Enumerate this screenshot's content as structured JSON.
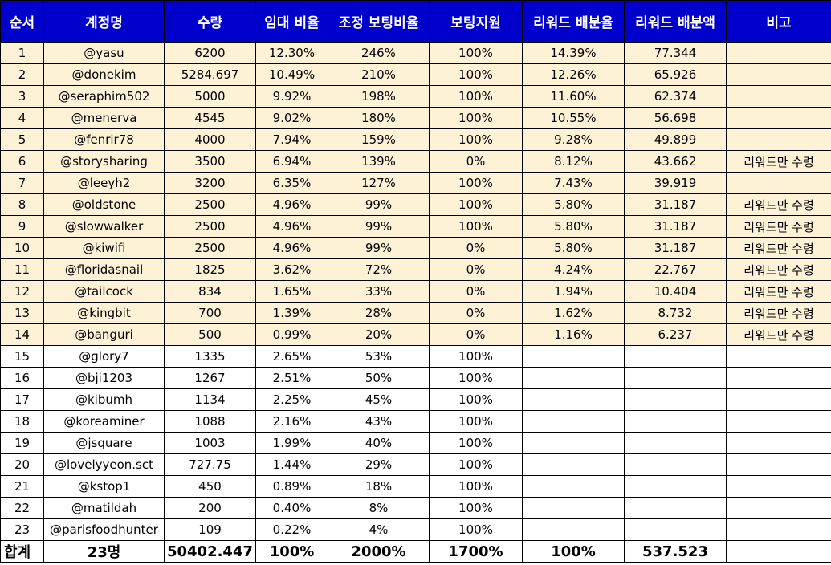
{
  "colors": {
    "header_bg": "#0000cc",
    "header_text": "#ffffff",
    "highlight_row_bg": "#fdf2d6",
    "border": "#000000"
  },
  "headers": [
    "순서",
    "계정명",
    "수량",
    "임대 비율",
    "조정 보팅비율",
    "보팅지원",
    "리워드 배분율",
    "리워드 배분액",
    "비고"
  ],
  "rows": [
    {
      "highlight": true,
      "cells": [
        "1",
        "@yasu",
        "6200",
        "12.30%",
        "246%",
        "100%",
        "14.39%",
        "77.344",
        ""
      ]
    },
    {
      "highlight": true,
      "cells": [
        "2",
        "@donekim",
        "5284.697",
        "10.49%",
        "210%",
        "100%",
        "12.26%",
        "65.926",
        ""
      ]
    },
    {
      "highlight": true,
      "cells": [
        "3",
        "@seraphim502",
        "5000",
        "9.92%",
        "198%",
        "100%",
        "11.60%",
        "62.374",
        ""
      ]
    },
    {
      "highlight": true,
      "cells": [
        "4",
        "@menerva",
        "4545",
        "9.02%",
        "180%",
        "100%",
        "10.55%",
        "56.698",
        ""
      ]
    },
    {
      "highlight": true,
      "cells": [
        "5",
        "@fenrir78",
        "4000",
        "7.94%",
        "159%",
        "100%",
        "9.28%",
        "49.899",
        ""
      ]
    },
    {
      "highlight": true,
      "cells": [
        "6",
        "@storysharing",
        "3500",
        "6.94%",
        "139%",
        "0%",
        "8.12%",
        "43.662",
        "리워드만 수령"
      ]
    },
    {
      "highlight": true,
      "cells": [
        "7",
        "@leeyh2",
        "3200",
        "6.35%",
        "127%",
        "100%",
        "7.43%",
        "39.919",
        ""
      ]
    },
    {
      "highlight": true,
      "cells": [
        "8",
        "@oldstone",
        "2500",
        "4.96%",
        "99%",
        "100%",
        "5.80%",
        "31.187",
        "리워드만 수령"
      ]
    },
    {
      "highlight": true,
      "cells": [
        "9",
        "@slowwalker",
        "2500",
        "4.96%",
        "99%",
        "100%",
        "5.80%",
        "31.187",
        "리워드만 수령"
      ]
    },
    {
      "highlight": true,
      "cells": [
        "10",
        "@kiwifi",
        "2500",
        "4.96%",
        "99%",
        "0%",
        "5.80%",
        "31.187",
        "리워드만 수령"
      ]
    },
    {
      "highlight": true,
      "cells": [
        "11",
        "@floridasnail",
        "1825",
        "3.62%",
        "72%",
        "0%",
        "4.24%",
        "22.767",
        "리워드만 수령"
      ]
    },
    {
      "highlight": true,
      "cells": [
        "12",
        "@tailcock",
        "834",
        "1.65%",
        "33%",
        "0%",
        "1.94%",
        "10.404",
        "리워드만 수령"
      ]
    },
    {
      "highlight": true,
      "cells": [
        "13",
        "@kingbit",
        "700",
        "1.39%",
        "28%",
        "0%",
        "1.62%",
        "8.732",
        "리워드만 수령"
      ]
    },
    {
      "highlight": true,
      "cells": [
        "14",
        "@banguri",
        "500",
        "0.99%",
        "20%",
        "0%",
        "1.16%",
        "6.237",
        "리워드만 수령"
      ]
    },
    {
      "highlight": false,
      "cells": [
        "15",
        "@glory7",
        "1335",
        "2.65%",
        "53%",
        "100%",
        "",
        "",
        ""
      ]
    },
    {
      "highlight": false,
      "cells": [
        "16",
        "@bji1203",
        "1267",
        "2.51%",
        "50%",
        "100%",
        "",
        "",
        ""
      ]
    },
    {
      "highlight": false,
      "cells": [
        "17",
        "@kibumh",
        "1134",
        "2.25%",
        "45%",
        "100%",
        "",
        "",
        ""
      ]
    },
    {
      "highlight": false,
      "cells": [
        "18",
        "@koreaminer",
        "1088",
        "2.16%",
        "43%",
        "100%",
        "",
        "",
        ""
      ]
    },
    {
      "highlight": false,
      "cells": [
        "19",
        "@jsquare",
        "1003",
        "1.99%",
        "40%",
        "100%",
        "",
        "",
        ""
      ]
    },
    {
      "highlight": false,
      "cells": [
        "20",
        "@lovelyyeon.sct",
        "727.75",
        "1.44%",
        "29%",
        "100%",
        "",
        "",
        ""
      ]
    },
    {
      "highlight": false,
      "cells": [
        "21",
        "@kstop1",
        "450",
        "0.89%",
        "18%",
        "100%",
        "",
        "",
        ""
      ]
    },
    {
      "highlight": false,
      "cells": [
        "22",
        "@matildah",
        "200",
        "0.40%",
        "8%",
        "100%",
        "",
        "",
        ""
      ]
    },
    {
      "highlight": false,
      "cells": [
        "23",
        "@parisfoodhunter",
        "109",
        "0.22%",
        "4%",
        "100%",
        "",
        "",
        ""
      ]
    }
  ],
  "totals": [
    "합계",
    "23명",
    "50402.447",
    "100%",
    "2000%",
    "1700%",
    "100%",
    "537.523",
    ""
  ]
}
